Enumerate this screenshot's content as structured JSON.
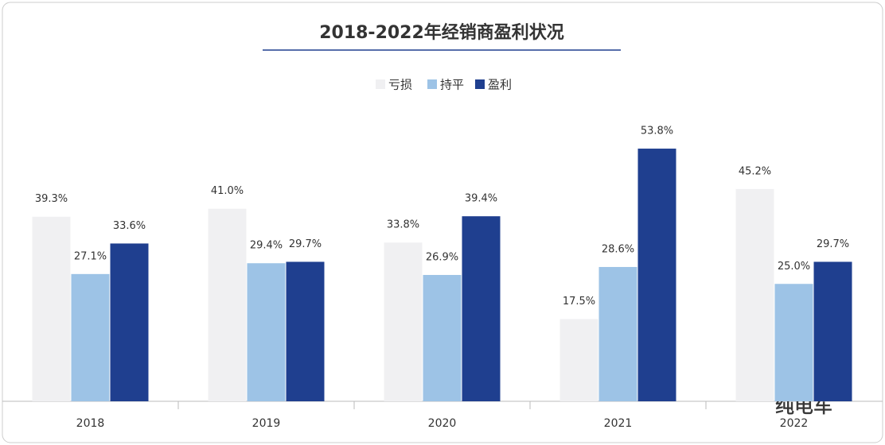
{
  "chart_data": {
    "type": "bar",
    "title": "2018-2022年经销商盈利状况",
    "categories": [
      "2018",
      "2019",
      "2020",
      "2021",
      "2022"
    ],
    "series": [
      {
        "name": "亏损",
        "color": "#f0f0f2",
        "values": [
          39.3,
          41.0,
          33.8,
          17.5,
          45.2
        ],
        "value_labels": [
          "39.3%",
          "41.0%",
          "33.8%",
          "17.5%",
          "45.2%"
        ]
      },
      {
        "name": "持平",
        "color": "#9dc3e6",
        "values": [
          27.1,
          29.4,
          26.9,
          28.6,
          25.0
        ],
        "value_labels": [
          "27.1%",
          "29.4%",
          "26.9%",
          "28.6%",
          "25.0%"
        ]
      },
      {
        "name": "盈利",
        "color": "#1f3f8f",
        "values": [
          33.6,
          29.7,
          39.4,
          53.8,
          29.7
        ],
        "value_labels": [
          "33.6%",
          "29.7%",
          "39.4%",
          "53.8%",
          "29.7%"
        ]
      }
    ],
    "legend": "top"
  },
  "watermark": "纯电车"
}
